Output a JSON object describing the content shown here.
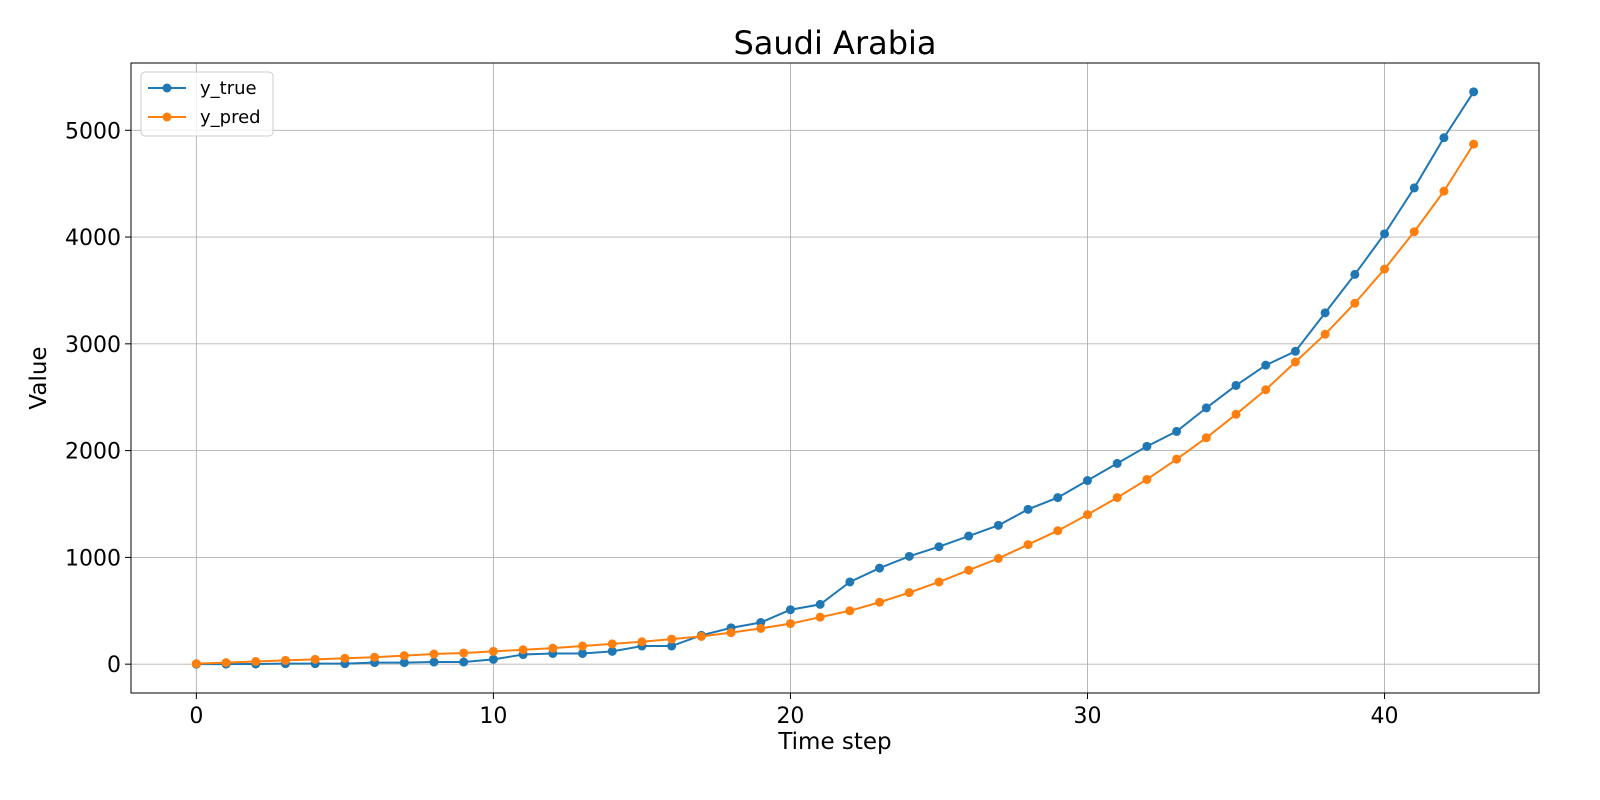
{
  "chart_data": {
    "type": "line",
    "title": "Saudi Arabia",
    "xlabel": "Time step",
    "ylabel": "Value",
    "xlim": [
      -2.2,
      45.2
    ],
    "ylim": [
      -270,
      5630
    ],
    "xticks": [
      0,
      10,
      20,
      30,
      40
    ],
    "yticks": [
      0,
      1000,
      2000,
      3000,
      4000,
      5000
    ],
    "grid": true,
    "legend_position": "top-left",
    "x": [
      0,
      1,
      2,
      3,
      4,
      5,
      6,
      7,
      8,
      9,
      10,
      11,
      12,
      13,
      14,
      15,
      16,
      17,
      18,
      19,
      20,
      21,
      22,
      23,
      24,
      25,
      26,
      27,
      28,
      29,
      30,
      31,
      32,
      33,
      34,
      35,
      36,
      37,
      38,
      39,
      40,
      41,
      42,
      43
    ],
    "series": [
      {
        "name": "y_true",
        "color": "#1f77b4",
        "values": [
          0,
          1,
          2,
          5,
          5,
          5,
          15,
          15,
          20,
          20,
          45,
          90,
          100,
          100,
          120,
          170,
          170,
          270,
          340,
          390,
          510,
          560,
          770,
          900,
          1010,
          1100,
          1200,
          1300,
          1450,
          1560,
          1720,
          1880,
          2040,
          2180,
          2400,
          2610,
          2800,
          2930,
          3290,
          3650,
          4030,
          4460,
          4930,
          5360
        ]
      },
      {
        "name": "y_pred",
        "color": "#ff7f0e",
        "values": [
          5,
          15,
          25,
          35,
          45,
          55,
          65,
          80,
          95,
          105,
          120,
          135,
          150,
          170,
          190,
          210,
          235,
          260,
          295,
          335,
          380,
          440,
          500,
          580,
          670,
          770,
          880,
          990,
          1120,
          1250,
          1400,
          1560,
          1730,
          1920,
          2120,
          2340,
          2570,
          2830,
          3090,
          3380,
          3700,
          4050,
          4430,
          4870
        ]
      }
    ]
  }
}
